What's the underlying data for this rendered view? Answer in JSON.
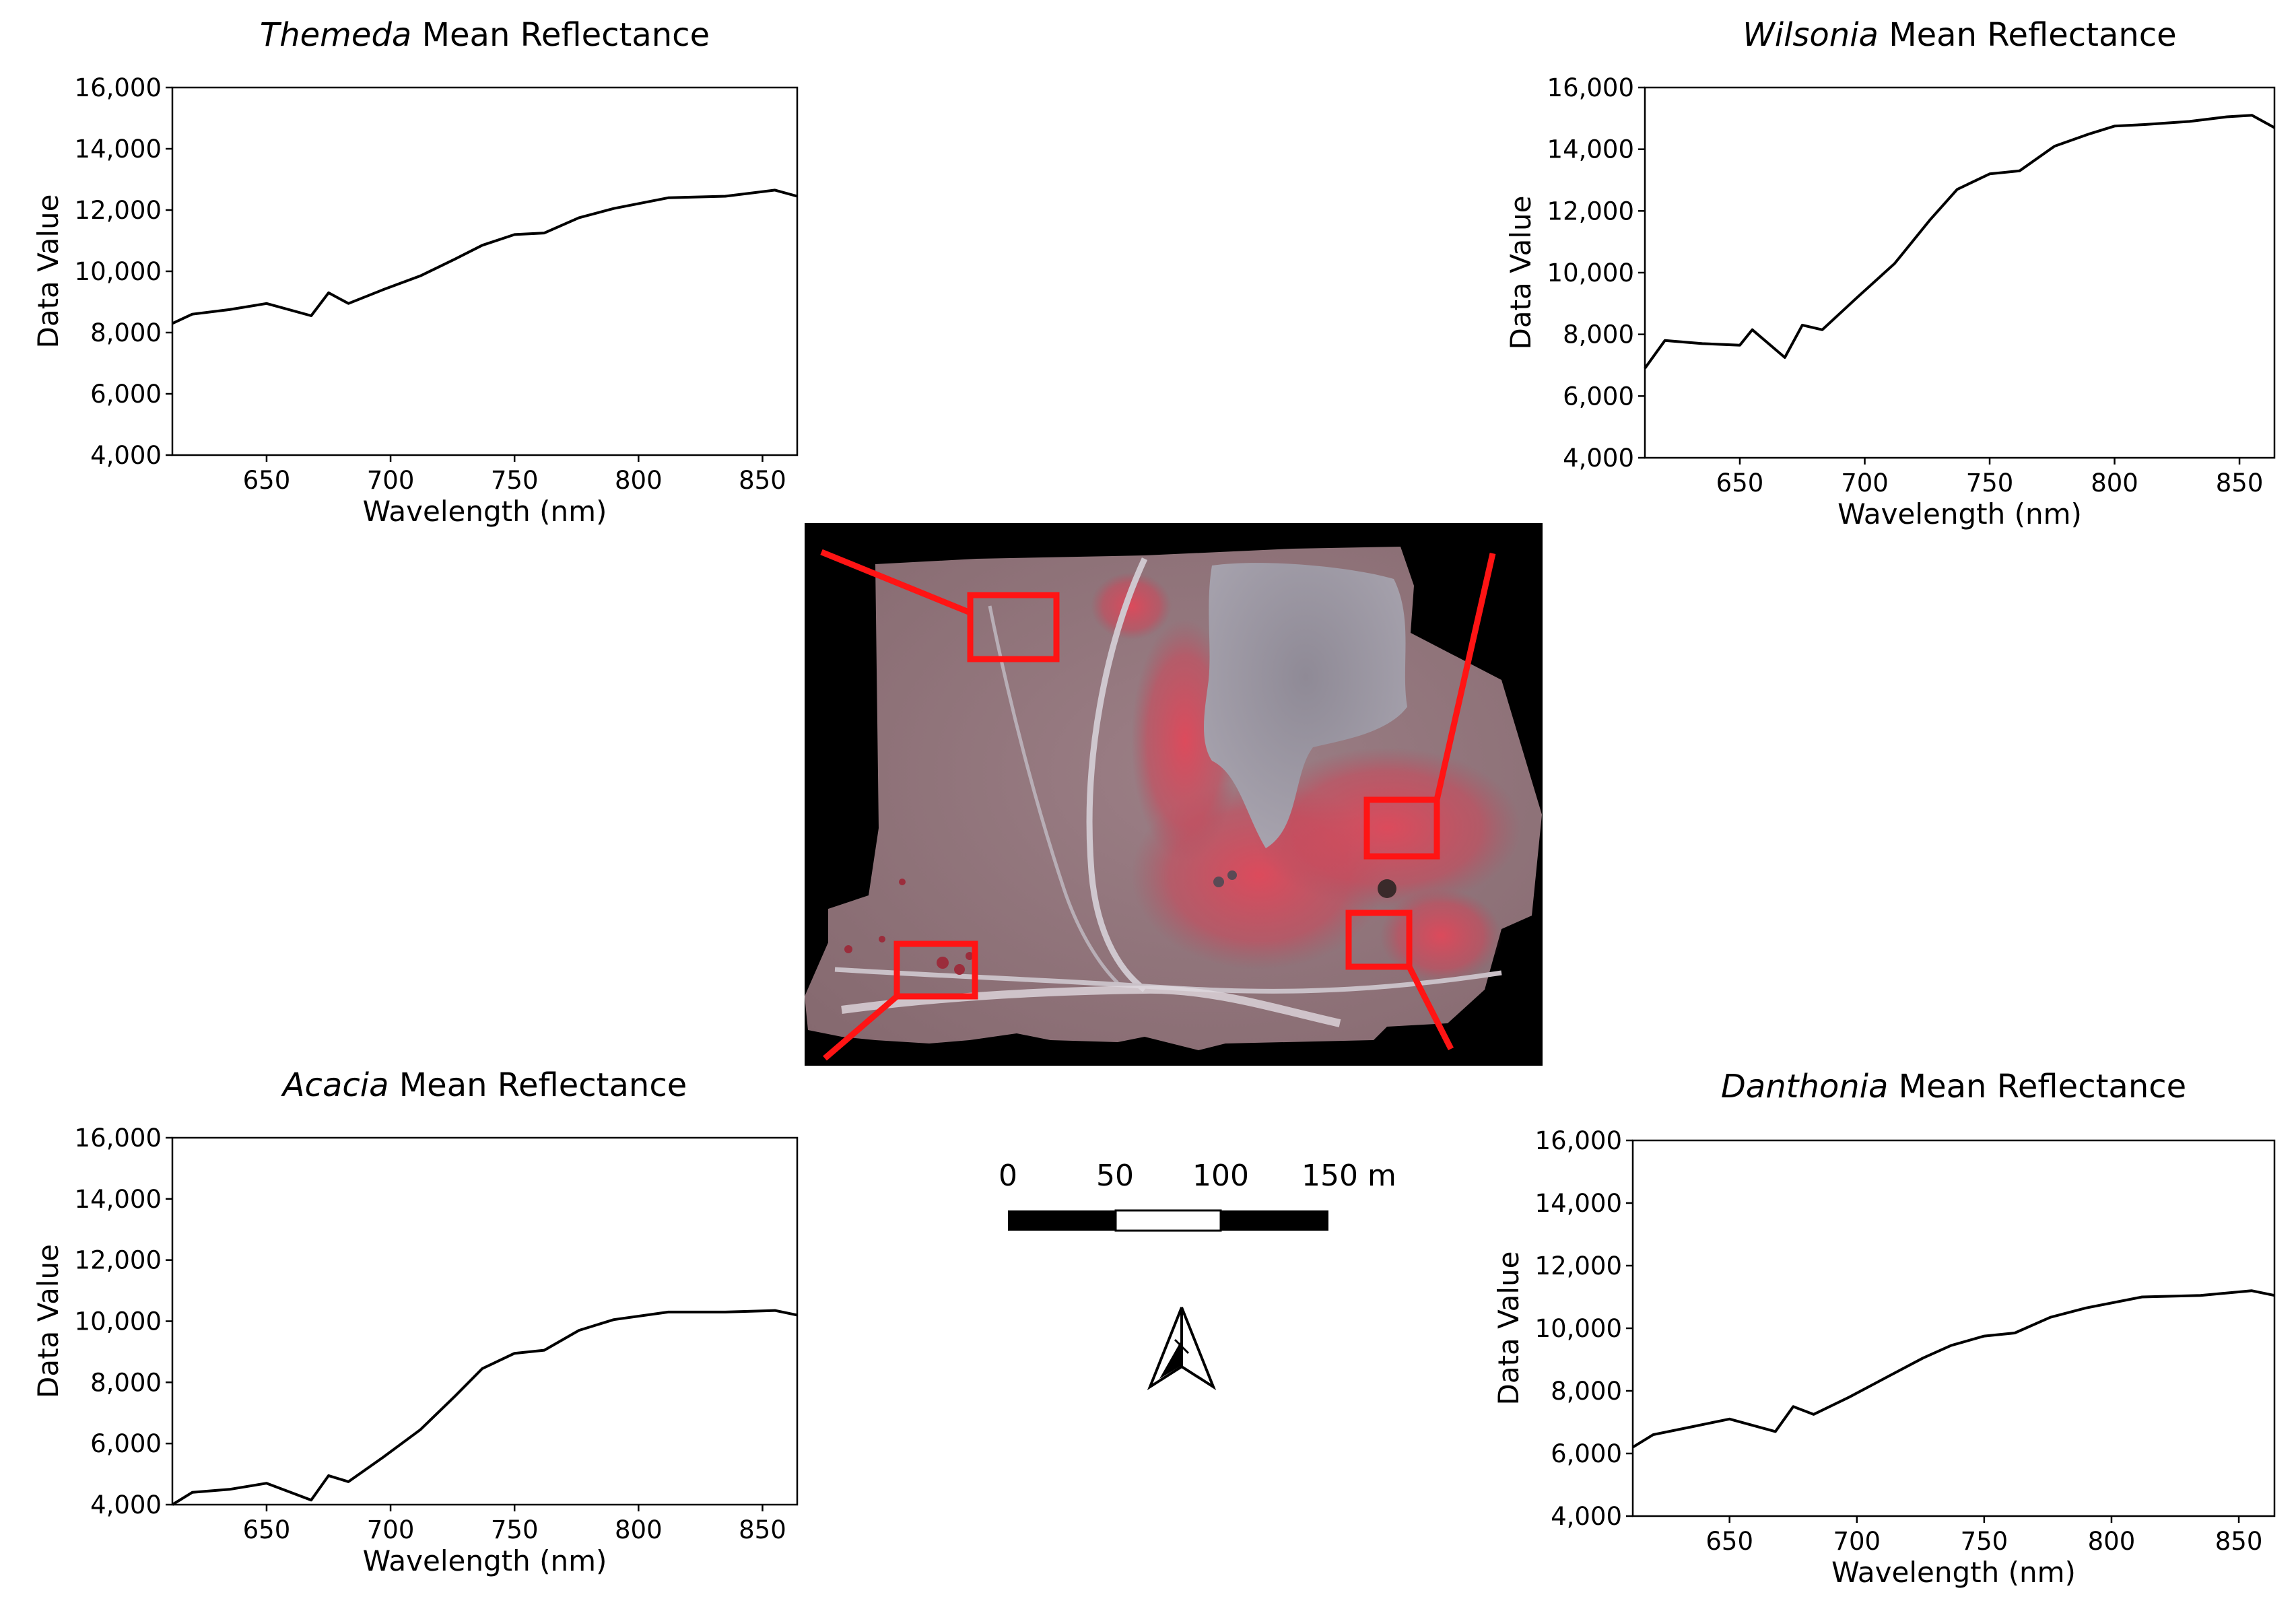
{
  "chart_data": [
    {
      "type": "line",
      "title_italic": "Themeda",
      "title_rest": " Mean Reflectance",
      "xlabel": "Wavelength (nm)",
      "ylabel": "Data Value",
      "xlim": [
        612,
        864
      ],
      "ylim": [
        4000,
        16000
      ],
      "xticks": [
        650,
        700,
        750,
        800,
        850
      ],
      "yticks": [
        4000,
        6000,
        8000,
        10000,
        12000,
        14000,
        16000
      ],
      "ytick_labels": [
        "4,000",
        "6,000",
        "8,000",
        "10,000",
        "12,000",
        "14,000",
        "16,000"
      ],
      "grid": false,
      "series": [
        {
          "x": [
            612,
            620,
            635,
            650,
            668,
            675,
            683,
            697,
            712,
            726,
            737,
            750,
            762,
            776,
            790,
            812,
            835,
            855,
            864
          ],
          "y": [
            8300,
            8600,
            8750,
            8950,
            8550,
            9300,
            8950,
            9400,
            9850,
            10400,
            10850,
            11200,
            11250,
            11750,
            12050,
            12400,
            12450,
            12650,
            12450
          ]
        }
      ]
    },
    {
      "type": "line",
      "title_italic": "Wilsonia",
      "title_rest": " Mean Reflectance",
      "xlabel": "Wavelength (nm)",
      "ylabel": "Data Value",
      "xlim": [
        612,
        864
      ],
      "ylim": [
        4000,
        16000
      ],
      "xticks": [
        650,
        700,
        750,
        800,
        850
      ],
      "yticks": [
        4000,
        6000,
        8000,
        10000,
        12000,
        14000,
        16000
      ],
      "ytick_labels": [
        "4,000",
        "6,000",
        "8,000",
        "10,000",
        "12,000",
        "14,000",
        "16,000"
      ],
      "grid": false,
      "series": [
        {
          "x": [
            612,
            620,
            635,
            650,
            655,
            668,
            675,
            683,
            697,
            712,
            726,
            737,
            750,
            762,
            776,
            790,
            800,
            812,
            830,
            845,
            855,
            864
          ],
          "y": [
            6900,
            7800,
            7700,
            7650,
            8150,
            7250,
            8300,
            8150,
            9200,
            10300,
            11700,
            12700,
            13200,
            13300,
            14100,
            14500,
            14750,
            14800,
            14900,
            15050,
            15100,
            14700
          ]
        }
      ]
    },
    {
      "type": "line",
      "title_italic": "Acacia",
      "title_rest": " Mean Reflectance",
      "xlabel": "Wavelength (nm)",
      "ylabel": "Data Value",
      "xlim": [
        612,
        864
      ],
      "ylim": [
        4000,
        16000
      ],
      "xticks": [
        650,
        700,
        750,
        800,
        850
      ],
      "yticks": [
        4000,
        6000,
        8000,
        10000,
        12000,
        14000,
        16000
      ],
      "ytick_labels": [
        "4,000",
        "6,000",
        "8,000",
        "10,000",
        "12,000",
        "14,000",
        "16,000"
      ],
      "grid": false,
      "series": [
        {
          "x": [
            612,
            620,
            635,
            650,
            668,
            675,
            683,
            697,
            712,
            726,
            737,
            750,
            762,
            776,
            790,
            812,
            835,
            855,
            864
          ],
          "y": [
            4000,
            4400,
            4500,
            4700,
            4150,
            4950,
            4750,
            5550,
            6450,
            7550,
            8450,
            8950,
            9050,
            9700,
            10050,
            10300,
            10300,
            10350,
            10200
          ]
        }
      ]
    },
    {
      "type": "line",
      "title_italic": "Danthonia",
      "title_rest": " Mean Reflectance",
      "xlabel": "Wavelength (nm)",
      "ylabel": "Data Value",
      "xlim": [
        612,
        864
      ],
      "ylim": [
        4000,
        16000
      ],
      "xticks": [
        650,
        700,
        750,
        800,
        850
      ],
      "yticks": [
        4000,
        6000,
        8000,
        10000,
        12000,
        14000,
        16000
      ],
      "ytick_labels": [
        "4,000",
        "6,000",
        "8,000",
        "10,000",
        "12,000",
        "14,000",
        "16,000"
      ],
      "grid": false,
      "series": [
        {
          "x": [
            612,
            620,
            635,
            650,
            668,
            675,
            683,
            697,
            712,
            726,
            737,
            750,
            762,
            776,
            790,
            812,
            835,
            855,
            864
          ],
          "y": [
            6200,
            6600,
            6850,
            7100,
            6700,
            7500,
            7250,
            7800,
            8450,
            9050,
            9450,
            9750,
            9850,
            10350,
            10650,
            11000,
            11050,
            11200,
            11050
          ]
        }
      ]
    }
  ],
  "scale_bar": {
    "labels": [
      "0",
      "50",
      "100",
      "150 m"
    ]
  },
  "north_arrow": {
    "icon": "north-arrow-icon"
  },
  "colors": {
    "box": "#ff1414",
    "line": "#000000"
  }
}
